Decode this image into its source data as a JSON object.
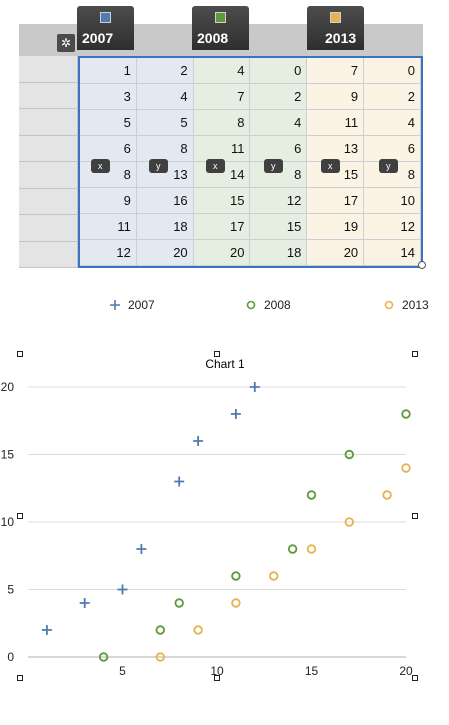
{
  "editor": {
    "series": [
      {
        "name": "2007",
        "color": "#4f7bb0"
      },
      {
        "name": "2008",
        "color": "#5e9a3c"
      },
      {
        "name": "2013",
        "color": "#e7b250"
      }
    ],
    "axis_labels": [
      "x",
      "y",
      "x",
      "y",
      "x",
      "y"
    ],
    "rows": [
      [
        "1",
        "2",
        "4",
        "0",
        "7",
        "0"
      ],
      [
        "3",
        "4",
        "7",
        "2",
        "9",
        "2"
      ],
      [
        "5",
        "5",
        "8",
        "4",
        "11",
        "4"
      ],
      [
        "6",
        "8",
        "11",
        "6",
        "13",
        "6"
      ],
      [
        "8",
        "13",
        "14",
        "8",
        "15",
        "8"
      ],
      [
        "9",
        "16",
        "15",
        "12",
        "17",
        "10"
      ],
      [
        "11",
        "18",
        "17",
        "15",
        "19",
        "12"
      ],
      [
        "12",
        "20",
        "20",
        "18",
        "20",
        "14"
      ]
    ]
  },
  "chart_data": {
    "type": "scatter",
    "title": "Chart 1",
    "xlabel": "",
    "ylabel": "",
    "xlim": [
      0,
      20
    ],
    "ylim": [
      0,
      20
    ],
    "x_ticks": [
      5,
      10,
      15,
      20
    ],
    "y_ticks": [
      0,
      5,
      10,
      15,
      20
    ],
    "grid": "horizontal",
    "legend_position": "top",
    "series": [
      {
        "name": "2007",
        "marker": "plus",
        "color": "#4f7bb0",
        "points": [
          [
            1,
            2
          ],
          [
            3,
            4
          ],
          [
            5,
            5
          ],
          [
            6,
            8
          ],
          [
            8,
            13
          ],
          [
            9,
            16
          ],
          [
            11,
            18
          ],
          [
            12,
            20
          ]
        ]
      },
      {
        "name": "2008",
        "marker": "circle",
        "color": "#5e9a3c",
        "points": [
          [
            4,
            0
          ],
          [
            7,
            2
          ],
          [
            8,
            4
          ],
          [
            11,
            6
          ],
          [
            14,
            8
          ],
          [
            15,
            12
          ],
          [
            17,
            15
          ],
          [
            20,
            18
          ]
        ]
      },
      {
        "name": "2013",
        "marker": "circle",
        "color": "#e7b250",
        "points": [
          [
            7,
            0
          ],
          [
            9,
            2
          ],
          [
            11,
            4
          ],
          [
            13,
            6
          ],
          [
            15,
            8
          ],
          [
            17,
            10
          ],
          [
            19,
            12
          ],
          [
            20,
            14
          ]
        ]
      }
    ]
  }
}
